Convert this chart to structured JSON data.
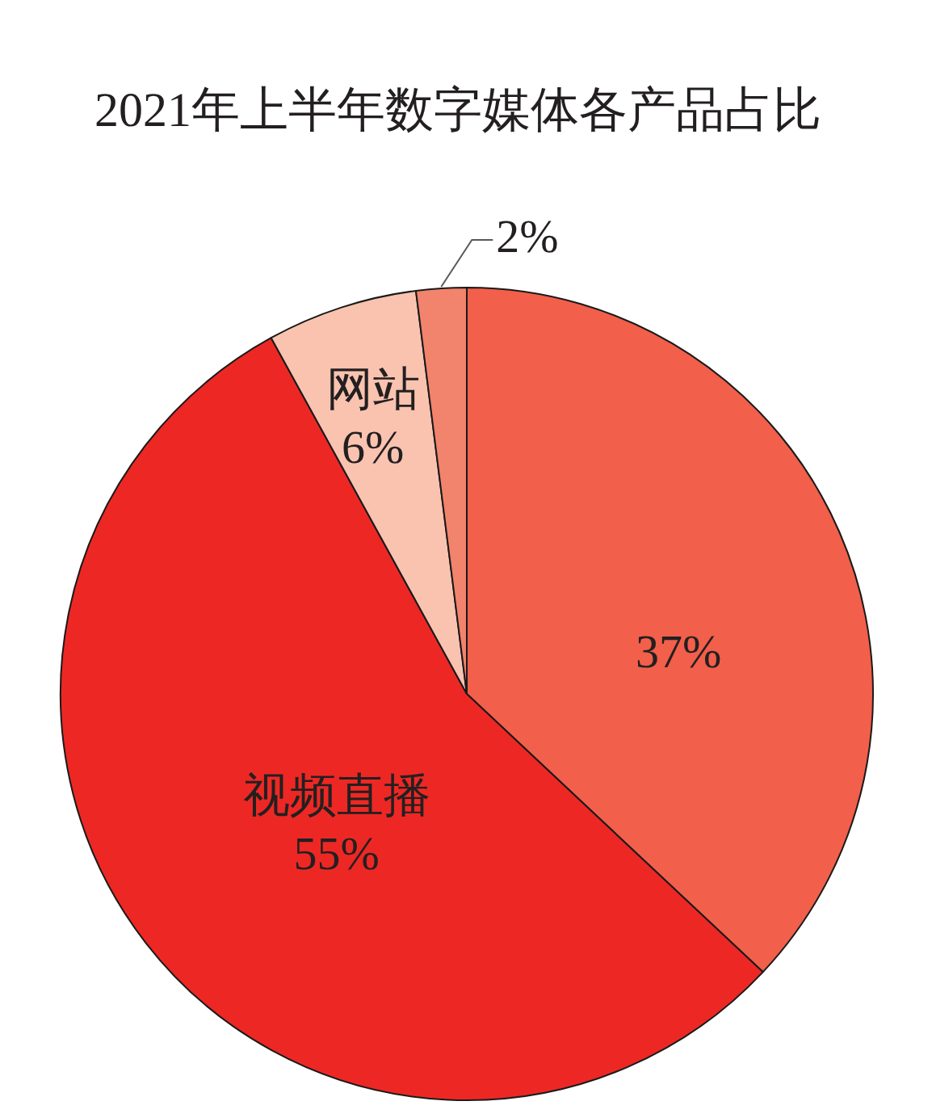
{
  "chart_data": {
    "type": "pie",
    "title": "2021年上半年数字媒体各产品占比",
    "categories": [
      null,
      "视频直播",
      "网站",
      null
    ],
    "values": [
      37,
      55,
      6,
      2
    ],
    "value_labels": [
      "37%",
      "55%",
      "6%",
      "2%"
    ],
    "colors": [
      "#f25f4a",
      "#ed2824",
      "#f9c3b0",
      "#f2836c"
    ]
  }
}
